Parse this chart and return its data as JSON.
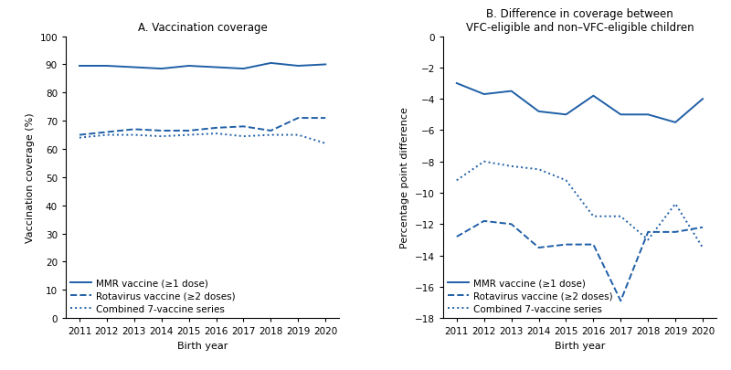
{
  "years": [
    2011,
    2012,
    2013,
    2014,
    2015,
    2016,
    2017,
    2018,
    2019,
    2020
  ],
  "panel_a": {
    "title": "A. Vaccination coverage",
    "xlabel": "Birth year",
    "ylabel": "Vaccination coverage (%)",
    "ylim": [
      0,
      100
    ],
    "yticks": [
      0,
      10,
      20,
      30,
      40,
      50,
      60,
      70,
      80,
      90,
      100
    ],
    "mmr": [
      89.5,
      89.5,
      89.0,
      88.5,
      89.5,
      89.0,
      88.5,
      90.5,
      89.5,
      90.0
    ],
    "rota": [
      65.0,
      66.0,
      67.0,
      66.5,
      66.5,
      67.5,
      68.0,
      66.5,
      71.0,
      71.0
    ],
    "combo": [
      64.0,
      65.0,
      65.0,
      64.5,
      65.0,
      65.5,
      64.5,
      65.0,
      65.0,
      62.0
    ]
  },
  "panel_b": {
    "title": "B. Difference in coverage between\nVFC-eligible and non–VFC-eligible children",
    "xlabel": "Birth year",
    "ylabel": "Percentage point difference",
    "ylim": [
      -18,
      0
    ],
    "yticks": [
      0,
      -2,
      -4,
      -6,
      -8,
      -10,
      -12,
      -14,
      -16,
      -18
    ],
    "mmr": [
      -3.0,
      -3.7,
      -3.5,
      -4.8,
      -5.0,
      -3.8,
      -5.0,
      -5.0,
      -5.5,
      -4.0
    ],
    "rota": [
      -12.8,
      -11.8,
      -12.0,
      -13.5,
      -13.3,
      -13.3,
      -16.9,
      -12.5,
      -12.5,
      -12.2
    ],
    "combo": [
      -9.2,
      -8.0,
      -8.3,
      -8.5,
      -9.2,
      -11.5,
      -11.5,
      -13.0,
      -10.7,
      -13.5
    ]
  },
  "line_color": "#1f5fa6",
  "legend_labels": [
    "MMR vaccine (≥1 dose)",
    "Rotavirus vaccine (≥2 doses)",
    "Combined 7-vaccine series"
  ],
  "figsize": [
    8.0,
    4.06
  ],
  "dpi": 100
}
